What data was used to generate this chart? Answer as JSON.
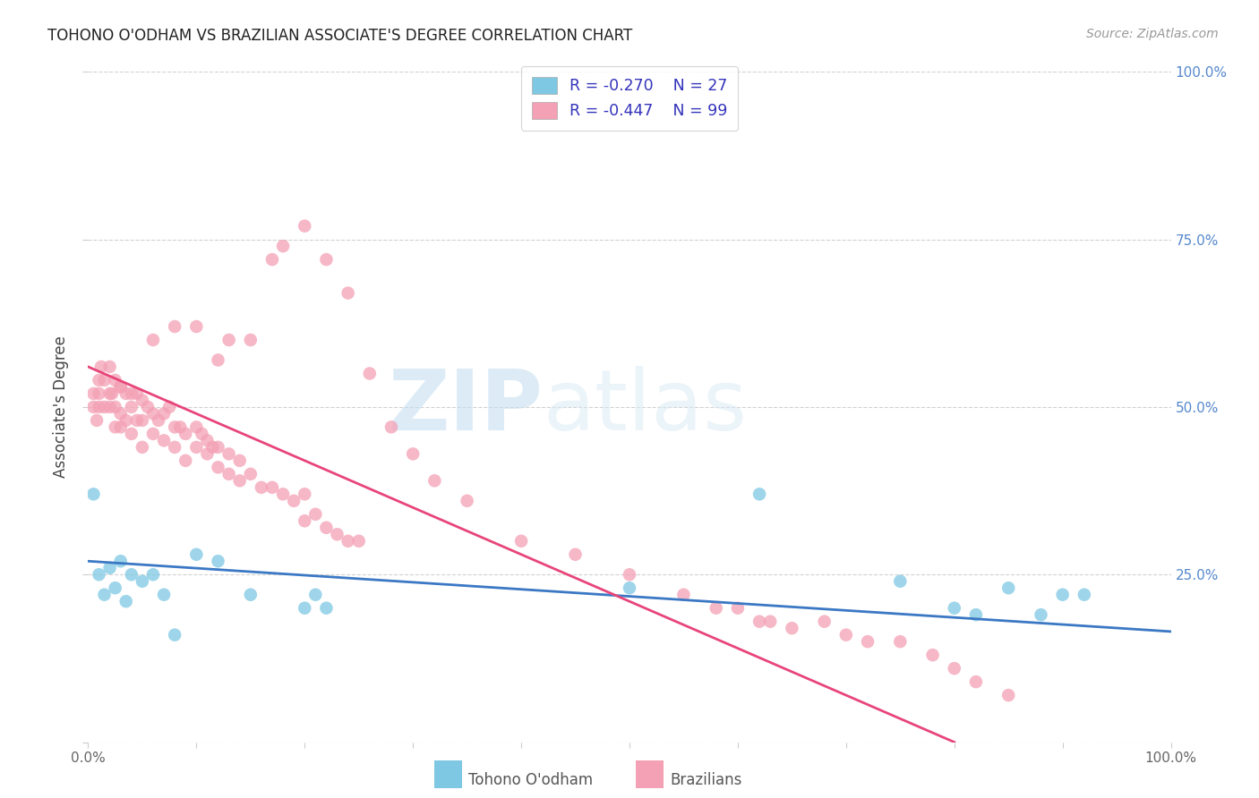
{
  "title": "TOHONO O'ODHAM VS BRAZILIAN ASSOCIATE'S DEGREE CORRELATION CHART",
  "source": "Source: ZipAtlas.com",
  "ylabel": "Associate's Degree",
  "watermark_zip": "ZIP",
  "watermark_atlas": "atlas",
  "legend_r1": "-0.270",
  "legend_n1": "27",
  "legend_r2": "-0.447",
  "legend_n2": "99",
  "legend_label1": "Tohono O'odham",
  "legend_label2": "Brazilians",
  "color_blue": "#7ec8e3",
  "color_pink": "#f4a0b5",
  "color_blue_line": "#3b78c4",
  "color_pink_line": "#e8457a",
  "color_legend_text": "#3333bb",
  "color_axis_right": "#5588cc",
  "color_r_value": "#cc2255",
  "xlim": [
    0.0,
    1.0
  ],
  "ylim": [
    0.0,
    1.0
  ],
  "yticks": [
    0.0,
    0.25,
    0.5,
    0.75,
    1.0
  ],
  "ytick_labels": [
    "",
    "25.0%",
    "50.0%",
    "75.0%",
    "100.0%"
  ],
  "blue_x": [
    0.005,
    0.01,
    0.015,
    0.02,
    0.025,
    0.03,
    0.035,
    0.04,
    0.05,
    0.06,
    0.07,
    0.08,
    0.1,
    0.12,
    0.15,
    0.2,
    0.21,
    0.22,
    0.5,
    0.62,
    0.75,
    0.8,
    0.82,
    0.85,
    0.88,
    0.9,
    0.92
  ],
  "blue_y": [
    0.37,
    0.25,
    0.22,
    0.26,
    0.23,
    0.27,
    0.21,
    0.25,
    0.24,
    0.25,
    0.22,
    0.16,
    0.28,
    0.27,
    0.22,
    0.2,
    0.22,
    0.2,
    0.23,
    0.37,
    0.24,
    0.2,
    0.19,
    0.23,
    0.19,
    0.22,
    0.22
  ],
  "pink_x": [
    0.005,
    0.005,
    0.008,
    0.01,
    0.01,
    0.01,
    0.012,
    0.015,
    0.015,
    0.02,
    0.02,
    0.02,
    0.022,
    0.025,
    0.025,
    0.025,
    0.03,
    0.03,
    0.03,
    0.03,
    0.035,
    0.035,
    0.04,
    0.04,
    0.04,
    0.045,
    0.045,
    0.05,
    0.05,
    0.05,
    0.055,
    0.06,
    0.06,
    0.065,
    0.07,
    0.07,
    0.075,
    0.08,
    0.08,
    0.085,
    0.09,
    0.09,
    0.1,
    0.1,
    0.105,
    0.11,
    0.11,
    0.115,
    0.12,
    0.12,
    0.13,
    0.13,
    0.14,
    0.14,
    0.15,
    0.16,
    0.17,
    0.18,
    0.19,
    0.2,
    0.2,
    0.21,
    0.22,
    0.23,
    0.24,
    0.25,
    0.06,
    0.08,
    0.1,
    0.12,
    0.13,
    0.15,
    0.17,
    0.18,
    0.2,
    0.22,
    0.24,
    0.26,
    0.28,
    0.3,
    0.32,
    0.35,
    0.4,
    0.45,
    0.5,
    0.55,
    0.58,
    0.6,
    0.62,
    0.63,
    0.65,
    0.68,
    0.7,
    0.72,
    0.75,
    0.78,
    0.8,
    0.82,
    0.85
  ],
  "pink_y": [
    0.52,
    0.5,
    0.48,
    0.54,
    0.52,
    0.5,
    0.56,
    0.54,
    0.5,
    0.56,
    0.52,
    0.5,
    0.52,
    0.54,
    0.5,
    0.47,
    0.53,
    0.49,
    0.47,
    0.53,
    0.52,
    0.48,
    0.52,
    0.5,
    0.46,
    0.52,
    0.48,
    0.51,
    0.48,
    0.44,
    0.5,
    0.49,
    0.46,
    0.48,
    0.49,
    0.45,
    0.5,
    0.47,
    0.44,
    0.47,
    0.46,
    0.42,
    0.47,
    0.44,
    0.46,
    0.45,
    0.43,
    0.44,
    0.44,
    0.41,
    0.43,
    0.4,
    0.42,
    0.39,
    0.4,
    0.38,
    0.38,
    0.37,
    0.36,
    0.37,
    0.33,
    0.34,
    0.32,
    0.31,
    0.3,
    0.3,
    0.6,
    0.62,
    0.62,
    0.57,
    0.6,
    0.6,
    0.72,
    0.74,
    0.77,
    0.72,
    0.67,
    0.55,
    0.47,
    0.43,
    0.39,
    0.36,
    0.3,
    0.28,
    0.25,
    0.22,
    0.2,
    0.2,
    0.18,
    0.18,
    0.17,
    0.18,
    0.16,
    0.15,
    0.15,
    0.13,
    0.11,
    0.09,
    0.07
  ],
  "blue_line_x": [
    0.0,
    1.0
  ],
  "blue_line_y": [
    0.27,
    0.165
  ],
  "pink_line_x": [
    0.0,
    0.8
  ],
  "pink_line_y": [
    0.56,
    0.0
  ]
}
